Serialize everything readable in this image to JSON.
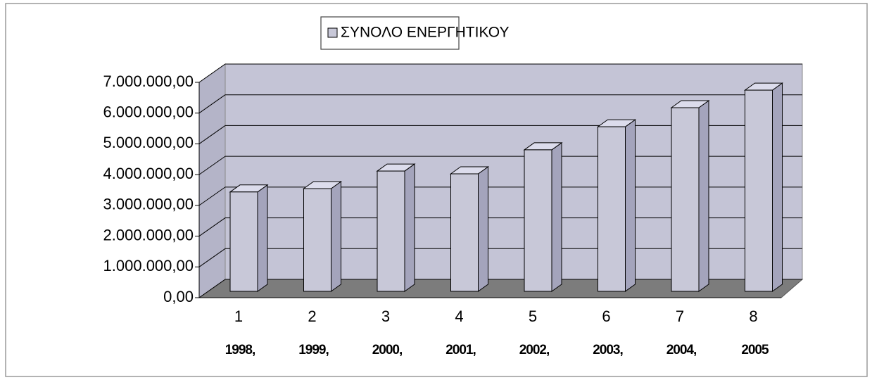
{
  "chart_data": {
    "type": "bar3d",
    "series": [
      {
        "name": "ΣΥΝΟΛΟ ΕΝΕΡΓΗΤΙΚΟΥ",
        "color": "#c8c8d8",
        "values": [
          3230000,
          3340000,
          3910000,
          3820000,
          4600000,
          5350000,
          5970000,
          6540000
        ]
      }
    ],
    "categories": [
      "1",
      "2",
      "3",
      "4",
      "5",
      "6",
      "7",
      "8"
    ],
    "category_years": [
      "1998,",
      "1999,",
      "2000,",
      "2001,",
      "2002,",
      "2003,",
      "2004,",
      "2005"
    ],
    "ylim": [
      0,
      7000000
    ],
    "yticks": [
      {
        "value": 0,
        "label": "0,00"
      },
      {
        "value": 1000000,
        "label": "1.000.000,00"
      },
      {
        "value": 2000000,
        "label": "2.000.000,00"
      },
      {
        "value": 3000000,
        "label": "3.000.000,00"
      },
      {
        "value": 4000000,
        "label": "4.000.000,00"
      },
      {
        "value": 5000000,
        "label": "5.000.000,00"
      },
      {
        "value": 6000000,
        "label": "6.000.000,00"
      },
      {
        "value": 7000000,
        "label": "7.000.000,00"
      }
    ],
    "grid": true
  }
}
